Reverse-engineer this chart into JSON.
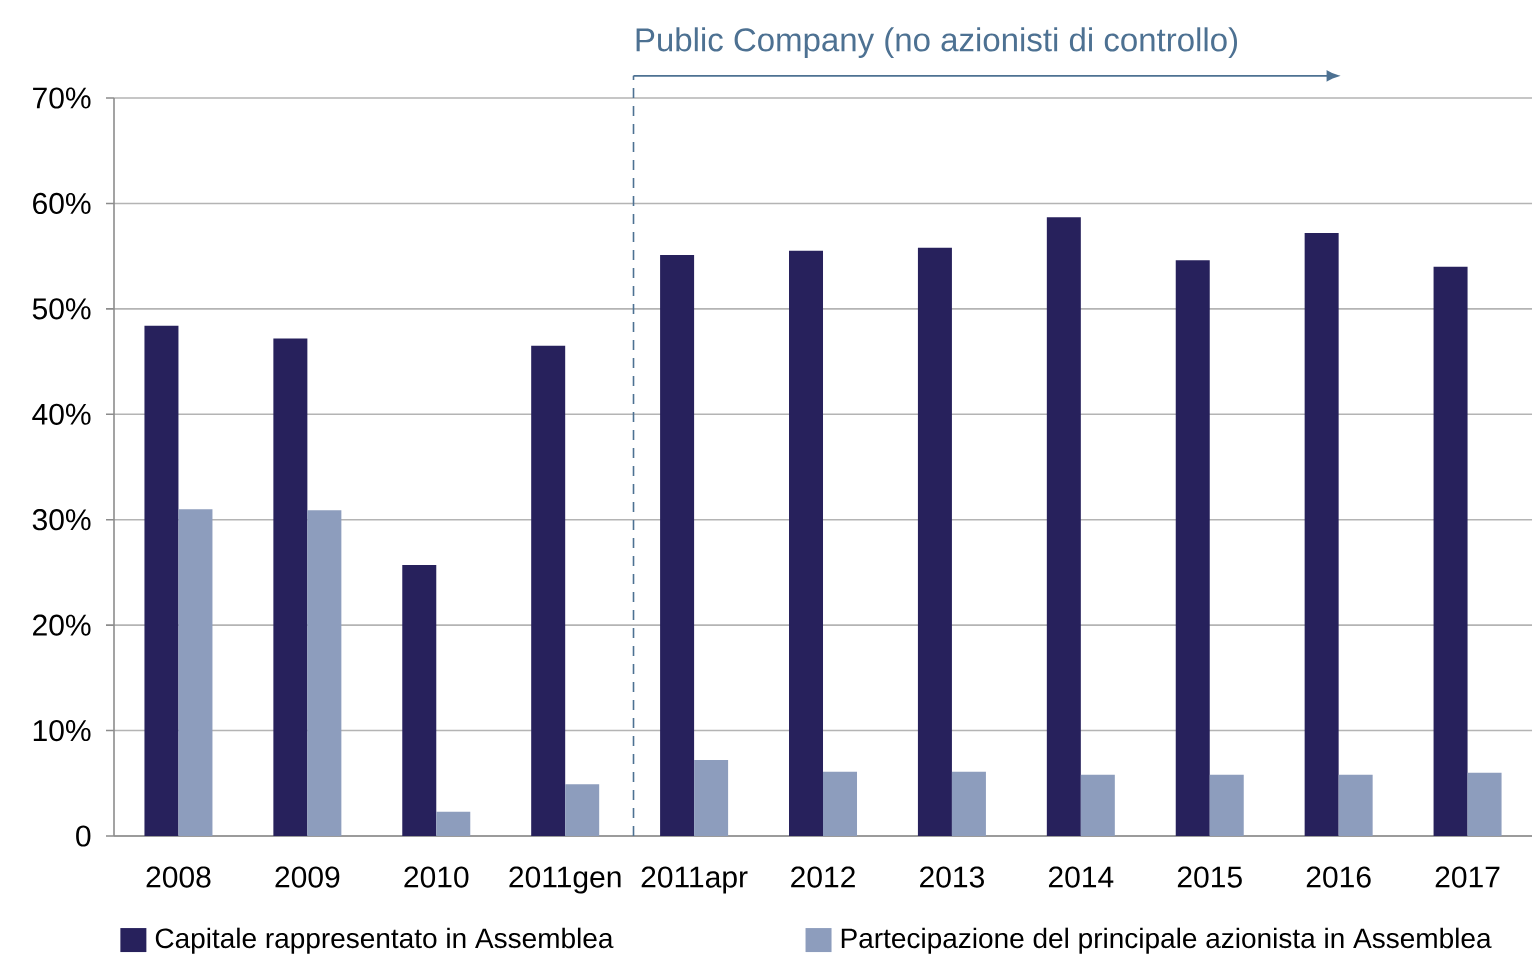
{
  "chart_data": {
    "type": "bar",
    "categories": [
      "2008",
      "2009",
      "2010",
      "2011gen",
      "2011apr",
      "2012",
      "2013",
      "2014",
      "2015",
      "2016",
      "2017"
    ],
    "series": [
      {
        "name": "Capitale rappresentato in Assemblea",
        "color": "#27215c",
        "values": [
          48.4,
          47.2,
          25.7,
          46.5,
          55.1,
          55.5,
          55.8,
          58.7,
          54.6,
          57.2,
          54.0
        ]
      },
      {
        "name": "Partecipazione del principale azionista in Assemblea",
        "color": "#8d9dbd",
        "values": [
          31.0,
          30.9,
          2.3,
          4.9,
          7.2,
          6.1,
          6.1,
          5.8,
          5.8,
          5.8,
          6.0
        ]
      }
    ],
    "ylim": [
      0,
      70
    ],
    "yticks": [
      0,
      {
        "value": 10,
        "label": "10%"
      },
      {
        "value": 20,
        "label": "20%"
      },
      {
        "value": 30,
        "label": "30%"
      },
      {
        "value": 40,
        "label": "40%"
      },
      {
        "value": 50,
        "label": "50%"
      },
      {
        "value": 60,
        "label": "60%"
      },
      {
        "value": 70,
        "label": "70%"
      }
    ],
    "grid": "y",
    "legend": "bottom",
    "ref_lines": [
      {
        "axis": "x",
        "value": "2011apr",
        "label": "Public Company (no azionisti di controllo)",
        "color": "#4d7192",
        "line_style": "dashed"
      }
    ]
  }
}
